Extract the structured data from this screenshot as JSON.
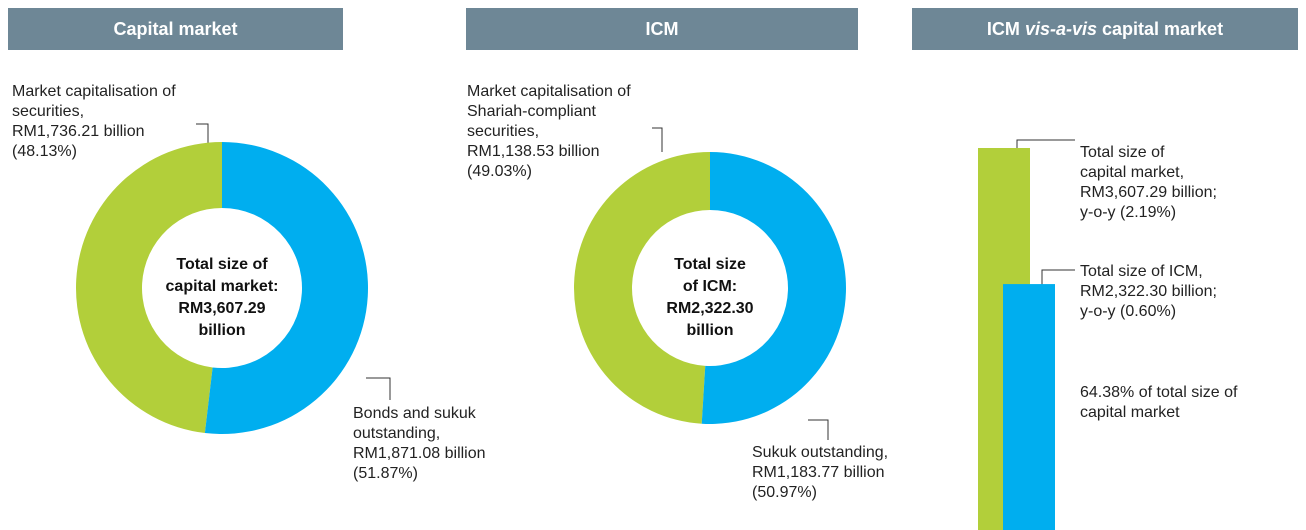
{
  "chart_data": [
    {
      "type": "pie",
      "title": "Capital market",
      "center_label": [
        "Total size of",
        "capital market:",
        "RM3,607.29",
        "billion"
      ],
      "categories": [
        "Market capitalisation of securities,",
        "Bonds and sukuk outstanding,"
      ],
      "amount_labels": [
        "RM1,736.21 billion",
        "RM1,871.08 billion"
      ],
      "values": [
        48.13,
        51.87
      ],
      "value_labels": [
        "(48.13%)",
        "(51.87%)"
      ],
      "colors": [
        "#b2cf3a",
        "#00aeef"
      ]
    },
    {
      "type": "pie",
      "title": "ICM",
      "center_label": [
        "Total size",
        "of ICM:",
        "RM2,322.30",
        "billion"
      ],
      "categories": [
        "Market capitalisation of Shariah-compliant securities,",
        "Sukuk outstanding,"
      ],
      "amount_labels": [
        "RM1,138.53 billion",
        "RM1,183.77 billion"
      ],
      "values": [
        49.03,
        50.97
      ],
      "value_labels": [
        "(49.03%)",
        "(50.97%)"
      ],
      "colors": [
        "#b2cf3a",
        "#00aeef"
      ]
    },
    {
      "type": "bar",
      "title": [
        "ICM",
        "vis-a-vis",
        "capital market"
      ],
      "categories": [
        "Total size of capital market,",
        "Total size of ICM,"
      ],
      "values": [
        3607.29,
        2322.3
      ],
      "value_labels": [
        "RM3,607.29 billion;",
        "RM2,322.30 billion;"
      ],
      "yoy_labels": [
        "y-o-y (2.19%)",
        "y-o-y (0.60%)"
      ],
      "annotation": "64.38% of total size of capital market",
      "colors": [
        "#b2cf3a",
        "#00aeef"
      ]
    }
  ]
}
